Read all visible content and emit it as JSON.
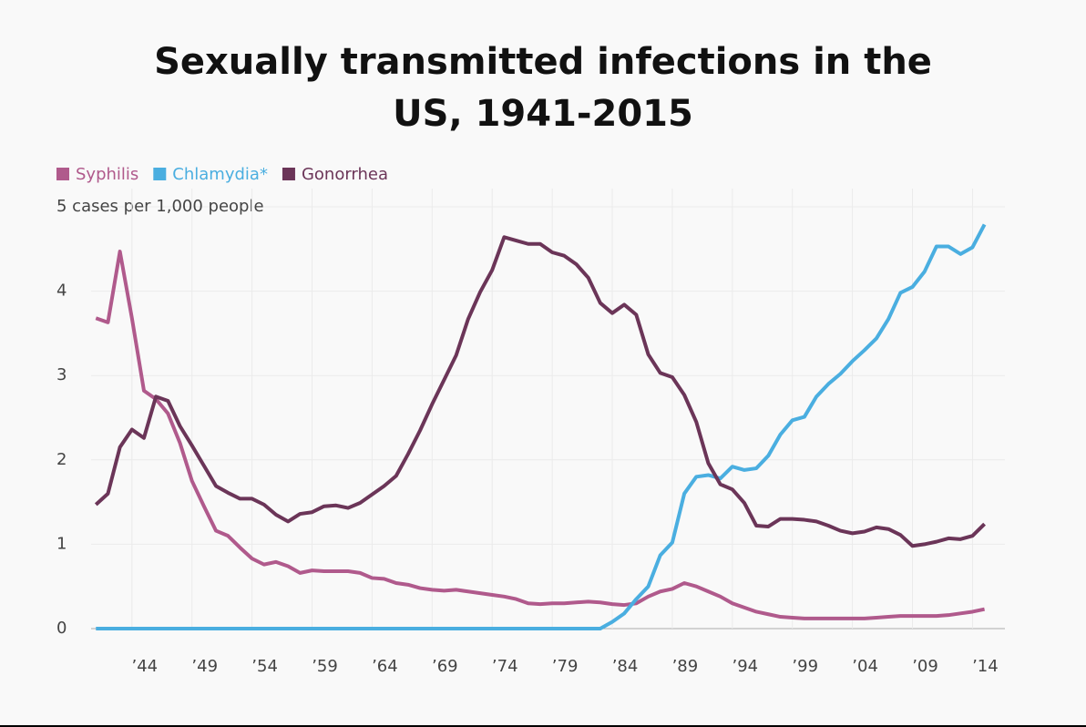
{
  "chart_data": {
    "type": "line",
    "title": "Sexually transmitted infections in the US, 1941-2015",
    "x": [
      1941,
      1942,
      1943,
      1944,
      1945,
      1946,
      1947,
      1948,
      1949,
      1950,
      1951,
      1952,
      1953,
      1954,
      1955,
      1956,
      1957,
      1958,
      1959,
      1960,
      1961,
      1962,
      1963,
      1964,
      1965,
      1966,
      1967,
      1968,
      1969,
      1970,
      1971,
      1972,
      1973,
      1974,
      1975,
      1976,
      1977,
      1978,
      1979,
      1980,
      1981,
      1982,
      1983,
      1984,
      1985,
      1986,
      1987,
      1988,
      1989,
      1990,
      1991,
      1992,
      1993,
      1994,
      1995,
      1996,
      1997,
      1998,
      1999,
      2000,
      2001,
      2002,
      2003,
      2004,
      2005,
      2006,
      2007,
      2008,
      2009,
      2010,
      2011,
      2012,
      2013,
      2014,
      2015
    ],
    "series": [
      {
        "name": "Syphilis",
        "color": "#b05a8c",
        "values": [
          3.68,
          3.63,
          4.47,
          3.68,
          2.82,
          2.72,
          2.55,
          2.2,
          1.75,
          1.45,
          1.16,
          1.1,
          0.96,
          0.83,
          0.76,
          0.79,
          0.74,
          0.66,
          0.69,
          0.68,
          0.68,
          0.68,
          0.66,
          0.6,
          0.59,
          0.54,
          0.52,
          0.48,
          0.46,
          0.45,
          0.46,
          0.44,
          0.42,
          0.4,
          0.38,
          0.35,
          0.3,
          0.29,
          0.3,
          0.3,
          0.31,
          0.32,
          0.31,
          0.29,
          0.28,
          0.3,
          0.38,
          0.44,
          0.47,
          0.54,
          0.5,
          0.44,
          0.38,
          0.3,
          0.25,
          0.2,
          0.17,
          0.14,
          0.13,
          0.12,
          0.12,
          0.12,
          0.12,
          0.12,
          0.12,
          0.13,
          0.14,
          0.15,
          0.15,
          0.15,
          0.15,
          0.16,
          0.18,
          0.2,
          0.23
        ]
      },
      {
        "name": "Chlamydia*",
        "color": "#4aaee0",
        "values": [
          0,
          0,
          0,
          0,
          0,
          0,
          0,
          0,
          0,
          0,
          0,
          0,
          0,
          0,
          0,
          0,
          0,
          0,
          0,
          0,
          0,
          0,
          0,
          0,
          0,
          0,
          0,
          0,
          0,
          0,
          0,
          0,
          0,
          0,
          0,
          0,
          0,
          0,
          0,
          0,
          0,
          0,
          0,
          0.08,
          0.18,
          0.35,
          0.5,
          0.87,
          1.02,
          1.6,
          1.8,
          1.82,
          1.78,
          1.92,
          1.88,
          1.9,
          2.05,
          2.3,
          2.47,
          2.51,
          2.75,
          2.9,
          3.02,
          3.17,
          3.3,
          3.44,
          3.67,
          3.98,
          4.05,
          4.23,
          4.53,
          4.53,
          4.44,
          4.52,
          4.79
        ]
      },
      {
        "name": "Gonorrhea",
        "color": "#6b3558",
        "values": [
          1.47,
          1.6,
          2.15,
          2.36,
          2.26,
          2.75,
          2.7,
          2.4,
          2.17,
          1.93,
          1.69,
          1.61,
          1.54,
          1.54,
          1.47,
          1.35,
          1.27,
          1.36,
          1.38,
          1.45,
          1.46,
          1.43,
          1.49,
          1.59,
          1.69,
          1.81,
          2.07,
          2.35,
          2.66,
          2.95,
          3.24,
          3.67,
          3.99,
          4.25,
          4.64,
          4.6,
          4.56,
          4.56,
          4.46,
          4.42,
          4.32,
          4.16,
          3.86,
          3.74,
          3.84,
          3.72,
          3.25,
          3.03,
          2.98,
          2.77,
          2.45,
          1.96,
          1.71,
          1.65,
          1.49,
          1.22,
          1.21,
          1.3,
          1.3,
          1.29,
          1.27,
          1.22,
          1.16,
          1.13,
          1.15,
          1.2,
          1.18,
          1.11,
          0.98,
          1.0,
          1.03,
          1.07,
          1.06,
          1.1,
          1.24
        ]
      }
    ],
    "xlim": [
      1940.6,
      2016.7
    ],
    "xticks": [
      {
        "value": 1944,
        "label": "’44"
      },
      {
        "value": 1949,
        "label": "’49"
      },
      {
        "value": 1954,
        "label": "’54"
      },
      {
        "value": 1959,
        "label": "’59"
      },
      {
        "value": 1964,
        "label": "’64"
      },
      {
        "value": 1969,
        "label": "’69"
      },
      {
        "value": 1974,
        "label": "’74"
      },
      {
        "value": 1979,
        "label": "’79"
      },
      {
        "value": 1984,
        "label": "’84"
      },
      {
        "value": 1989,
        "label": "’89"
      },
      {
        "value": 1994,
        "label": "’94"
      },
      {
        "value": 1999,
        "label": "’99"
      },
      {
        "value": 2004,
        "label": "’04"
      },
      {
        "value": 2009,
        "label": "’09"
      },
      {
        "value": 2014,
        "label": "’14"
      }
    ],
    "ylim": [
      0,
      5
    ],
    "yticks": [
      0,
      1,
      2,
      3,
      4,
      {
        "value": 5,
        "label": "5 cases per 1,000 people"
      }
    ],
    "grid": true
  }
}
